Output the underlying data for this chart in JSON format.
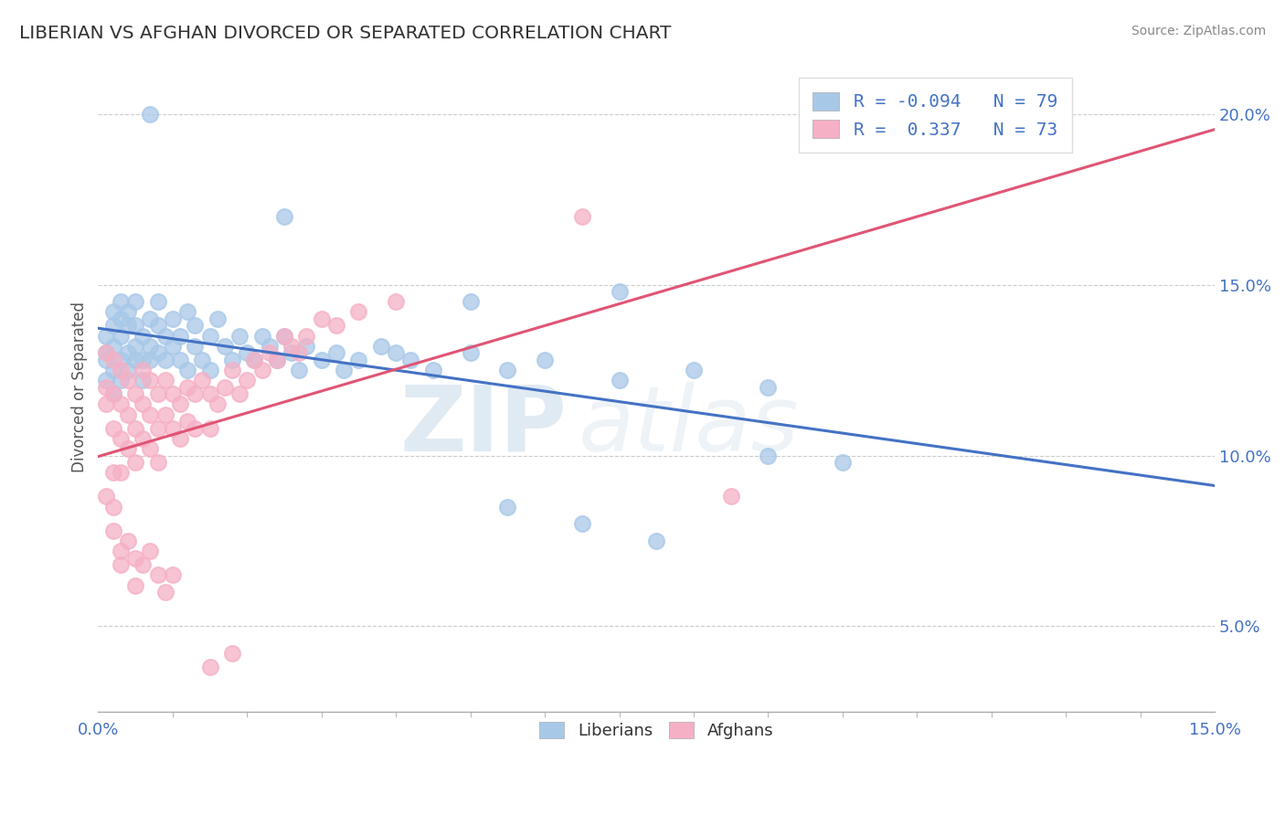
{
  "title": "LIBERIAN VS AFGHAN DIVORCED OR SEPARATED CORRELATION CHART",
  "source": "Source: ZipAtlas.com",
  "ylabel": "Divorced or Separated",
  "xlim": [
    0.0,
    0.15
  ],
  "ylim": [
    0.025,
    0.215
  ],
  "ytick_labels": [
    "5.0%",
    "10.0%",
    "15.0%",
    "20.0%"
  ],
  "ytick_values": [
    0.05,
    0.1,
    0.15,
    0.2
  ],
  "liberian_color": "#a8c8e8",
  "afghan_color": "#f5b0c5",
  "liberian_line_color": "#4472c4",
  "afghan_line_color": "#e05575",
  "liberian_R": -0.094,
  "liberian_N": 79,
  "afghan_R": 0.337,
  "afghan_N": 73,
  "watermark_zip": "ZIP",
  "watermark_atlas": "atlas",
  "background_color": "#ffffff",
  "grid_color": "#cccccc",
  "liberian_scatter": [
    [
      0.001,
      0.13
    ],
    [
      0.001,
      0.128
    ],
    [
      0.001,
      0.135
    ],
    [
      0.001,
      0.122
    ],
    [
      0.002,
      0.138
    ],
    [
      0.002,
      0.132
    ],
    [
      0.002,
      0.142
    ],
    [
      0.002,
      0.125
    ],
    [
      0.002,
      0.118
    ],
    [
      0.003,
      0.14
    ],
    [
      0.003,
      0.135
    ],
    [
      0.003,
      0.128
    ],
    [
      0.003,
      0.145
    ],
    [
      0.003,
      0.122
    ],
    [
      0.004,
      0.138
    ],
    [
      0.004,
      0.13
    ],
    [
      0.004,
      0.125
    ],
    [
      0.004,
      0.142
    ],
    [
      0.005,
      0.132
    ],
    [
      0.005,
      0.128
    ],
    [
      0.005,
      0.138
    ],
    [
      0.005,
      0.145
    ],
    [
      0.006,
      0.135
    ],
    [
      0.006,
      0.128
    ],
    [
      0.006,
      0.122
    ],
    [
      0.007,
      0.14
    ],
    [
      0.007,
      0.132
    ],
    [
      0.007,
      0.128
    ],
    [
      0.008,
      0.138
    ],
    [
      0.008,
      0.145
    ],
    [
      0.008,
      0.13
    ],
    [
      0.009,
      0.135
    ],
    [
      0.009,
      0.128
    ],
    [
      0.01,
      0.132
    ],
    [
      0.01,
      0.14
    ],
    [
      0.011,
      0.135
    ],
    [
      0.011,
      0.128
    ],
    [
      0.012,
      0.142
    ],
    [
      0.012,
      0.125
    ],
    [
      0.013,
      0.138
    ],
    [
      0.013,
      0.132
    ],
    [
      0.014,
      0.128
    ],
    [
      0.015,
      0.135
    ],
    [
      0.015,
      0.125
    ],
    [
      0.016,
      0.14
    ],
    [
      0.017,
      0.132
    ],
    [
      0.018,
      0.128
    ],
    [
      0.019,
      0.135
    ],
    [
      0.02,
      0.13
    ],
    [
      0.021,
      0.128
    ],
    [
      0.022,
      0.135
    ],
    [
      0.023,
      0.132
    ],
    [
      0.024,
      0.128
    ],
    [
      0.025,
      0.135
    ],
    [
      0.026,
      0.13
    ],
    [
      0.027,
      0.125
    ],
    [
      0.028,
      0.132
    ],
    [
      0.03,
      0.128
    ],
    [
      0.032,
      0.13
    ],
    [
      0.033,
      0.125
    ],
    [
      0.035,
      0.128
    ],
    [
      0.038,
      0.132
    ],
    [
      0.04,
      0.13
    ],
    [
      0.042,
      0.128
    ],
    [
      0.045,
      0.125
    ],
    [
      0.05,
      0.13
    ],
    [
      0.055,
      0.125
    ],
    [
      0.06,
      0.128
    ],
    [
      0.07,
      0.122
    ],
    [
      0.08,
      0.125
    ],
    [
      0.09,
      0.12
    ],
    [
      0.007,
      0.2
    ],
    [
      0.025,
      0.17
    ],
    [
      0.05,
      0.145
    ],
    [
      0.07,
      0.148
    ],
    [
      0.09,
      0.1
    ],
    [
      0.1,
      0.098
    ],
    [
      0.055,
      0.085
    ],
    [
      0.065,
      0.08
    ],
    [
      0.075,
      0.075
    ]
  ],
  "afghan_scatter": [
    [
      0.001,
      0.13
    ],
    [
      0.001,
      0.12
    ],
    [
      0.001,
      0.115
    ],
    [
      0.002,
      0.128
    ],
    [
      0.002,
      0.118
    ],
    [
      0.002,
      0.108
    ],
    [
      0.002,
      0.095
    ],
    [
      0.003,
      0.125
    ],
    [
      0.003,
      0.115
    ],
    [
      0.003,
      0.105
    ],
    [
      0.003,
      0.095
    ],
    [
      0.004,
      0.122
    ],
    [
      0.004,
      0.112
    ],
    [
      0.004,
      0.102
    ],
    [
      0.005,
      0.118
    ],
    [
      0.005,
      0.108
    ],
    [
      0.005,
      0.098
    ],
    [
      0.006,
      0.125
    ],
    [
      0.006,
      0.115
    ],
    [
      0.006,
      0.105
    ],
    [
      0.007,
      0.122
    ],
    [
      0.007,
      0.112
    ],
    [
      0.007,
      0.102
    ],
    [
      0.008,
      0.118
    ],
    [
      0.008,
      0.108
    ],
    [
      0.008,
      0.098
    ],
    [
      0.009,
      0.122
    ],
    [
      0.009,
      0.112
    ],
    [
      0.01,
      0.118
    ],
    [
      0.01,
      0.108
    ],
    [
      0.011,
      0.115
    ],
    [
      0.011,
      0.105
    ],
    [
      0.012,
      0.12
    ],
    [
      0.012,
      0.11
    ],
    [
      0.013,
      0.118
    ],
    [
      0.013,
      0.108
    ],
    [
      0.014,
      0.122
    ],
    [
      0.015,
      0.118
    ],
    [
      0.015,
      0.108
    ],
    [
      0.016,
      0.115
    ],
    [
      0.017,
      0.12
    ],
    [
      0.018,
      0.125
    ],
    [
      0.019,
      0.118
    ],
    [
      0.02,
      0.122
    ],
    [
      0.021,
      0.128
    ],
    [
      0.022,
      0.125
    ],
    [
      0.023,
      0.13
    ],
    [
      0.024,
      0.128
    ],
    [
      0.025,
      0.135
    ],
    [
      0.026,
      0.132
    ],
    [
      0.027,
      0.13
    ],
    [
      0.028,
      0.135
    ],
    [
      0.03,
      0.14
    ],
    [
      0.032,
      0.138
    ],
    [
      0.035,
      0.142
    ],
    [
      0.001,
      0.088
    ],
    [
      0.002,
      0.078
    ],
    [
      0.002,
      0.085
    ],
    [
      0.003,
      0.072
    ],
    [
      0.003,
      0.068
    ],
    [
      0.004,
      0.075
    ],
    [
      0.005,
      0.062
    ],
    [
      0.005,
      0.07
    ],
    [
      0.006,
      0.068
    ],
    [
      0.007,
      0.072
    ],
    [
      0.008,
      0.065
    ],
    [
      0.009,
      0.06
    ],
    [
      0.01,
      0.065
    ],
    [
      0.015,
      0.038
    ],
    [
      0.018,
      0.042
    ],
    [
      0.04,
      0.145
    ],
    [
      0.065,
      0.17
    ],
    [
      0.085,
      0.088
    ]
  ]
}
